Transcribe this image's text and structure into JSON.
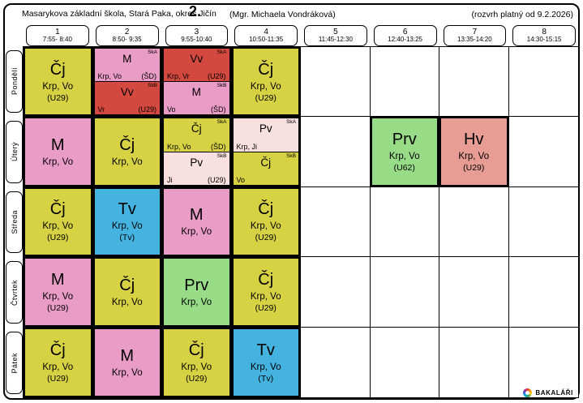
{
  "header": {
    "school": "Masarykova základní škola, Stará Paka, okres Jičín",
    "class_label": "2.",
    "class_teacher": "(Mgr. Michaela Vondráková)",
    "validity": "(rozvrh platný od 9.2.2026)"
  },
  "periods": [
    {
      "num": "1",
      "time": "7:55- 8:40"
    },
    {
      "num": "2",
      "time": "8:50- 9:35"
    },
    {
      "num": "3",
      "time": "9:55-10:40"
    },
    {
      "num": "4",
      "time": "10:50-11:35"
    },
    {
      "num": "5",
      "time": "11:45-12:30"
    },
    {
      "num": "6",
      "time": "12:40-13:25"
    },
    {
      "num": "7",
      "time": "13:35-14:20"
    },
    {
      "num": "8",
      "time": "14:30-15:15"
    }
  ],
  "days": [
    "Pondělí",
    "Úterý",
    "Středa",
    "Čtvrtek",
    "Pátek"
  ],
  "palette": {
    "yellow": "#d7d243",
    "pink": "#e99cc5",
    "red": "#d3493f",
    "blue": "#44b3df",
    "green": "#98dc88",
    "salmon": "#e89d94",
    "lightpink": "#f8e0e1"
  },
  "timetable": [
    [
      {
        "type": "single",
        "subject": "Čj",
        "teacher": "Krp, Vo",
        "room": "(U29)",
        "color": "yellow"
      },
      {
        "type": "split",
        "groups": [
          {
            "label": "SkA",
            "subject": "M",
            "teacher": "Krp, Vo",
            "room": "(ŠD)",
            "color": "pink"
          },
          {
            "label": "SkB",
            "subject": "Vv",
            "teacher": "Vr",
            "room": "(U29)",
            "color": "red"
          }
        ]
      },
      {
        "type": "split",
        "groups": [
          {
            "label": "SkA",
            "subject": "Vv",
            "teacher": "Krp, Vr",
            "room": "(U29)",
            "color": "red"
          },
          {
            "label": "SkB",
            "subject": "M",
            "teacher": "Vo",
            "room": "(ŠD)",
            "color": "pink"
          }
        ]
      },
      {
        "type": "single",
        "subject": "Čj",
        "teacher": "Krp, Vo",
        "room": "(U29)",
        "color": "yellow"
      },
      null,
      null,
      null,
      null
    ],
    [
      {
        "type": "single",
        "subject": "M",
        "teacher": "Krp, Vo",
        "room": "",
        "color": "pink"
      },
      {
        "type": "single",
        "subject": "Čj",
        "teacher": "Krp, Vo",
        "room": "",
        "color": "yellow"
      },
      {
        "type": "split",
        "groups": [
          {
            "label": "SkA",
            "subject": "Čj",
            "teacher": "Krp, Vo",
            "room": "(ŠD)",
            "color": "yellow"
          },
          {
            "label": "SkB",
            "subject": "Pv",
            "teacher": "Ji",
            "room": "(U29)",
            "color": "lightpink"
          }
        ]
      },
      {
        "type": "split",
        "groups": [
          {
            "label": "SkA",
            "subject": "Pv",
            "teacher": "Krp, Ji",
            "room": "",
            "color": "lightpink"
          },
          {
            "label": "SkB",
            "subject": "Čj",
            "teacher": "Vo",
            "room": "",
            "color": "yellow"
          }
        ]
      },
      null,
      {
        "type": "single",
        "subject": "Prv",
        "teacher": "Krp, Vo",
        "room": "(U62)",
        "color": "green"
      },
      {
        "type": "single",
        "subject": "Hv",
        "teacher": "Krp, Vo",
        "room": "(U29)",
        "color": "salmon"
      },
      null
    ],
    [
      {
        "type": "single",
        "subject": "Čj",
        "teacher": "Krp, Vo",
        "room": "(U29)",
        "color": "yellow"
      },
      {
        "type": "single",
        "subject": "Tv",
        "teacher": "Krp, Vo",
        "room": "(Tv)",
        "color": "blue"
      },
      {
        "type": "single",
        "subject": "M",
        "teacher": "Krp, Vo",
        "room": "",
        "color": "pink"
      },
      {
        "type": "single",
        "subject": "Čj",
        "teacher": "Krp, Vo",
        "room": "(U29)",
        "color": "yellow"
      },
      null,
      null,
      null,
      null
    ],
    [
      {
        "type": "single",
        "subject": "M",
        "teacher": "Krp, Vo",
        "room": "(U29)",
        "color": "pink"
      },
      {
        "type": "single",
        "subject": "Čj",
        "teacher": "Krp, Vo",
        "room": "",
        "color": "yellow"
      },
      {
        "type": "single",
        "subject": "Prv",
        "teacher": "Krp, Vo",
        "room": "",
        "color": "green"
      },
      {
        "type": "single",
        "subject": "Čj",
        "teacher": "Krp, Vo",
        "room": "(U29)",
        "color": "yellow"
      },
      null,
      null,
      null,
      null
    ],
    [
      {
        "type": "single",
        "subject": "Čj",
        "teacher": "Krp, Vo",
        "room": "(U29)",
        "color": "yellow"
      },
      {
        "type": "single",
        "subject": "M",
        "teacher": "Krp, Vo",
        "room": "",
        "color": "pink"
      },
      {
        "type": "single",
        "subject": "Čj",
        "teacher": "Krp, Vo",
        "room": "(U29)",
        "color": "yellow"
      },
      {
        "type": "single",
        "subject": "Tv",
        "teacher": "Krp, Vo",
        "room": "(Tv)",
        "color": "blue"
      },
      null,
      null,
      null,
      null
    ]
  ],
  "footer": {
    "brand": "BAKALÁŘI"
  }
}
